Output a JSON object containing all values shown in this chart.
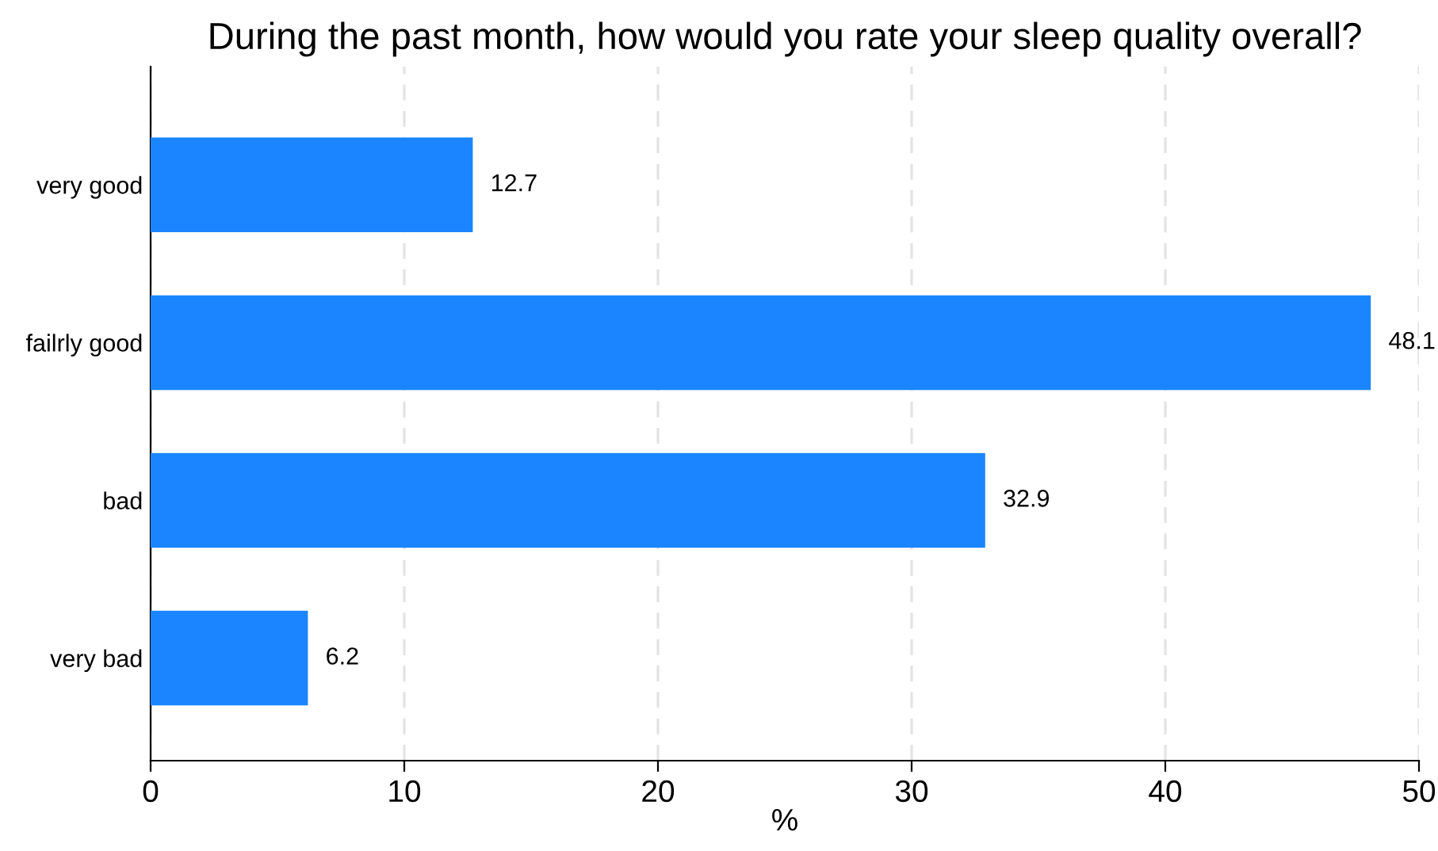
{
  "chart_data": {
    "type": "bar",
    "orientation": "horizontal",
    "title": "During the past month, how would you rate your sleep quality overall?",
    "categories": [
      "very good",
      "failrly good",
      "bad",
      "very bad"
    ],
    "values": [
      12.7,
      48.1,
      32.9,
      6.2
    ],
    "color": "#1a85ff",
    "xlabel": "%",
    "xlim": [
      0,
      50
    ],
    "xticks": [
      0,
      10,
      20,
      30,
      40,
      50
    ],
    "grid": "x",
    "data_labels": true
  }
}
